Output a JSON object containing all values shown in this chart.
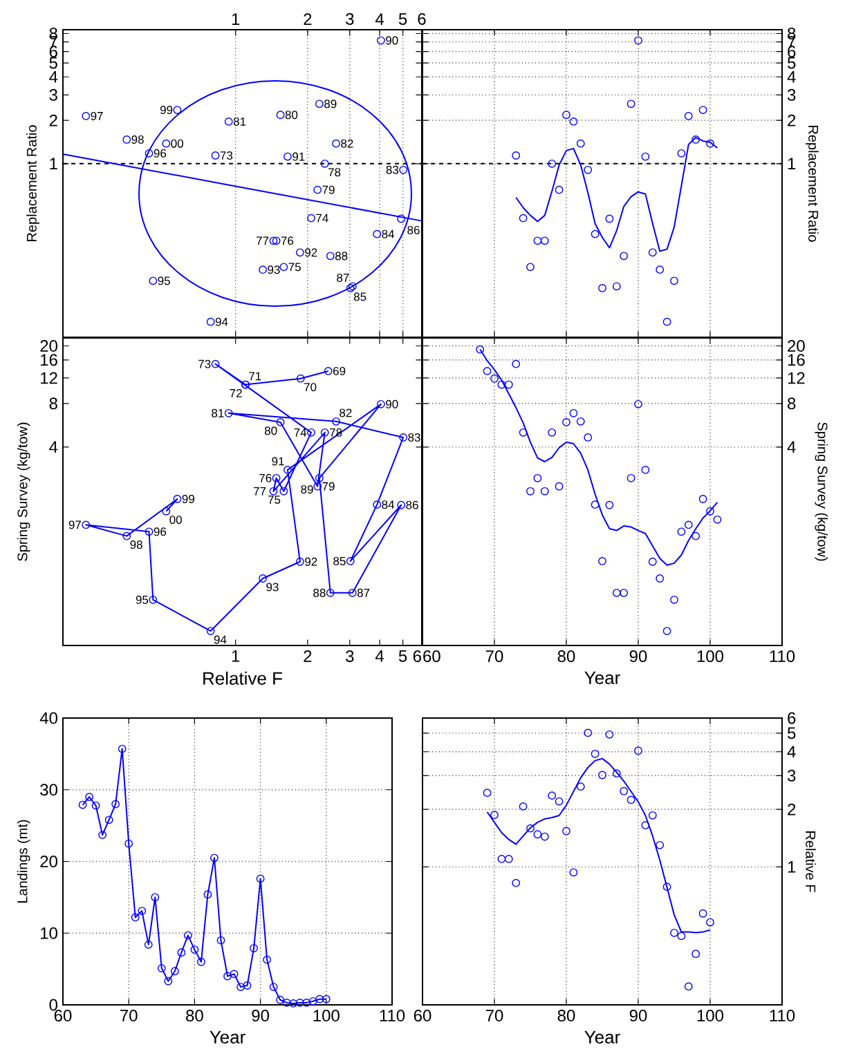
{
  "chart_data": [
    {
      "type": "scatter",
      "ylabel": "Replacement Ratio",
      "log": "xy",
      "xlim": [
        0.19,
        6
      ],
      "ylim": [
        0.0625,
        8.5
      ],
      "xticks": [
        1,
        2,
        3,
        4,
        5,
        6
      ],
      "yticks": [
        1,
        2,
        3,
        4,
        5,
        6,
        7,
        8
      ],
      "grid": "x",
      "ref_lines": [
        {
          "axis": "y",
          "value": 1,
          "line_style": "dashed"
        }
      ],
      "series": [
        {
          "color": "#0000ff",
          "marker": "circle",
          "x": [
            0.824,
            2.07,
            1.59,
            1.48,
            1.44,
            2.36,
            2.2,
            1.54,
            0.936,
            2.63,
            5.02,
            3.9,
            3.02,
            4.92,
            3.08,
            2.49,
            2.24,
            4.05,
            1.65,
            1.86,
            1.3,
            0.787,
            0.452,
            0.435,
            0.237,
            0.351,
            0.571,
            0.513
          ],
          "values": [
            1.14,
            0.419,
            0.192,
            0.292,
            0.292,
            1.0,
            0.659,
            2.18,
            1.96,
            1.38,
            0.906,
            0.325,
            0.137,
            0.415,
            0.141,
            0.229,
            2.6,
            7.16,
            1.12,
            0.242,
            0.184,
            0.08,
            0.154,
            1.18,
            2.14,
            1.47,
            2.36,
            1.38
          ]
        },
        {
          "type": "line",
          "color": "#0000ff",
          "x": [
            0.19,
            1,
            6
          ],
          "values": [
            1.166,
            0.698,
            0.401
          ]
        }
      ],
      "annotations": [
        {
          "text": "73",
          "x": 0.824,
          "y": 1.14
        },
        {
          "text": "74",
          "x": 2.07,
          "y": 0.419
        },
        {
          "text": "75",
          "x": 1.59,
          "y": 0.192
        },
        {
          "text": "76",
          "x": 1.48,
          "y": 0.292
        },
        {
          "text": "77",
          "x": 1.44,
          "y": 0.292
        },
        {
          "text": "78",
          "x": 2.36,
          "y": 1.0
        },
        {
          "text": "79",
          "x": 2.2,
          "y": 0.659
        },
        {
          "text": "80",
          "x": 1.54,
          "y": 2.18
        },
        {
          "text": "81",
          "x": 0.936,
          "y": 1.96
        },
        {
          "text": "82",
          "x": 2.63,
          "y": 1.38
        },
        {
          "text": "83",
          "x": 5.02,
          "y": 0.906
        },
        {
          "text": "84",
          "x": 3.9,
          "y": 0.325
        },
        {
          "text": "85",
          "x": 3.02,
          "y": 0.137
        },
        {
          "text": "86",
          "x": 4.92,
          "y": 0.415
        },
        {
          "text": "87",
          "x": 3.08,
          "y": 0.141
        },
        {
          "text": "88",
          "x": 2.49,
          "y": 0.229
        },
        {
          "text": "89",
          "x": 2.24,
          "y": 2.6
        },
        {
          "text": "90",
          "x": 4.05,
          "y": 7.16
        },
        {
          "text": "91",
          "x": 1.65,
          "y": 1.12
        },
        {
          "text": "92",
          "x": 1.86,
          "y": 0.242
        },
        {
          "text": "93",
          "x": 1.3,
          "y": 0.184
        },
        {
          "text": "94",
          "x": 0.787,
          "y": 0.08
        },
        {
          "text": "95",
          "x": 0.452,
          "y": 0.154
        },
        {
          "text": "96",
          "x": 0.435,
          "y": 1.18
        },
        {
          "text": "97",
          "x": 0.237,
          "y": 2.14
        },
        {
          "text": "98",
          "x": 0.351,
          "y": 1.47
        },
        {
          "text": "99",
          "x": 0.571,
          "y": 2.36
        },
        {
          "text": "00",
          "x": 0.513,
          "y": 1.38
        }
      ]
    },
    {
      "type": "scatter",
      "ylabel": "Replacement Ratio",
      "log": "y",
      "xlim": [
        60,
        110
      ],
      "ylim": [
        0.0625,
        8.5
      ],
      "xticks": [
        60,
        70,
        80,
        90,
        100,
        110
      ],
      "yticks": [
        1,
        2,
        3,
        4,
        5,
        6,
        7,
        8
      ],
      "grid": true,
      "tick_labels": "y",
      "ref_lines": [
        {
          "axis": "y",
          "value": 1,
          "line_style": "dashed"
        }
      ],
      "series": [
        {
          "color": "#0000ff",
          "marker": "circle",
          "x": [
            73,
            74,
            75,
            76,
            77,
            78,
            79,
            80,
            81,
            82,
            83,
            84,
            85,
            86,
            87,
            88,
            89,
            90,
            91,
            92,
            93,
            94,
            95,
            96,
            97,
            98,
            99,
            100
          ],
          "values": [
            1.14,
            0.419,
            0.192,
            0.292,
            0.292,
            1.0,
            0.659,
            2.18,
            1.96,
            1.38,
            0.906,
            0.325,
            0.137,
            0.415,
            0.141,
            0.229,
            2.6,
            7.16,
            1.12,
            0.242,
            0.184,
            0.08,
            0.154,
            1.18,
            2.14,
            1.47,
            2.36,
            1.38
          ]
        },
        {
          "type": "line",
          "color": "#0000ff",
          "x": [
            73,
            74,
            75,
            76,
            77,
            78,
            79,
            80,
            81,
            82,
            83,
            84,
            85,
            86,
            87,
            88,
            89,
            90,
            91,
            92,
            93,
            94,
            95,
            96,
            97,
            98,
            99,
            100,
            101
          ],
          "values": [
            0.583,
            0.495,
            0.438,
            0.397,
            0.438,
            0.644,
            0.978,
            1.233,
            1.274,
            0.978,
            0.63,
            0.384,
            0.308,
            0.261,
            0.344,
            0.506,
            0.59,
            0.637,
            0.616,
            0.384,
            0.247,
            0.255,
            0.363,
            0.703,
            1.361,
            1.518,
            1.438,
            1.406,
            1.288
          ]
        }
      ]
    },
    {
      "type": "line",
      "xlabel": "Relative F",
      "ylabel": "Spring Survey (kg/tow)",
      "log": "xy",
      "xlim": [
        0.19,
        6
      ],
      "ylim": [
        0.17,
        22.7
      ],
      "xticks": [
        1,
        2,
        3,
        4,
        5,
        6
      ],
      "yticks": [
        4,
        8,
        12,
        16,
        20
      ],
      "series": [
        {
          "color": "#0000ff",
          "marker": "circle",
          "x": [
            2.44,
            1.87,
            1.1,
            1.1,
            0.824,
            2.07,
            1.59,
            1.48,
            1.44,
            2.36,
            2.2,
            1.54,
            0.936,
            2.63,
            5.02,
            3.9,
            3.02,
            4.92,
            3.08,
            2.49,
            2.24,
            4.05,
            1.65,
            1.86,
            1.3,
            0.787,
            0.452,
            0.435,
            0.237,
            0.351,
            0.571,
            0.513
          ],
          "values": [
            13.4,
            11.9,
            10.8,
            10.8,
            15.0,
            5.04,
            1.98,
            2.44,
            1.98,
            5.04,
            2.14,
            5.94,
            6.86,
            6.01,
            4.66,
            1.6,
            0.651,
            1.59,
            0.393,
            0.393,
            2.44,
            7.91,
            2.78,
            0.645,
            0.494,
            0.214,
            0.352,
            1.04,
            1.16,
            0.97,
            1.75,
            1.44
          ]
        }
      ],
      "annotations": [
        {
          "text": "69",
          "x": 2.44,
          "y": 13.4
        },
        {
          "text": "70",
          "x": 1.87,
          "y": 11.9
        },
        {
          "text": "71",
          "x": 1.1,
          "y": 10.8
        },
        {
          "text": "72",
          "x": 1.1,
          "y": 10.8
        },
        {
          "text": "73",
          "x": 0.824,
          "y": 15.0
        },
        {
          "text": "74",
          "x": 2.07,
          "y": 5.04
        },
        {
          "text": "75",
          "x": 1.59,
          "y": 1.98
        },
        {
          "text": "76",
          "x": 1.48,
          "y": 2.44
        },
        {
          "text": "77",
          "x": 1.44,
          "y": 1.98
        },
        {
          "text": "78",
          "x": 2.36,
          "y": 5.04
        },
        {
          "text": "79",
          "x": 2.2,
          "y": 2.14
        },
        {
          "text": "80",
          "x": 1.54,
          "y": 5.94
        },
        {
          "text": "81",
          "x": 0.936,
          "y": 6.86
        },
        {
          "text": "82",
          "x": 2.63,
          "y": 6.01
        },
        {
          "text": "83",
          "x": 5.02,
          "y": 4.66
        },
        {
          "text": "84",
          "x": 3.9,
          "y": 1.6
        },
        {
          "text": "85",
          "x": 3.02,
          "y": 0.651
        },
        {
          "text": "86",
          "x": 4.92,
          "y": 1.59
        },
        {
          "text": "87",
          "x": 3.08,
          "y": 0.393
        },
        {
          "text": "88",
          "x": 2.49,
          "y": 0.393
        },
        {
          "text": "89",
          "x": 2.24,
          "y": 2.44
        },
        {
          "text": "90",
          "x": 4.05,
          "y": 7.91
        },
        {
          "text": "91",
          "x": 1.65,
          "y": 2.78
        },
        {
          "text": "92",
          "x": 1.86,
          "y": 0.645
        },
        {
          "text": "93",
          "x": 1.3,
          "y": 0.494
        },
        {
          "text": "94",
          "x": 0.787,
          "y": 0.214
        },
        {
          "text": "95",
          "x": 0.452,
          "y": 0.352
        },
        {
          "text": "96",
          "x": 0.435,
          "y": 1.04
        },
        {
          "text": "97",
          "x": 0.237,
          "y": 1.16
        },
        {
          "text": "98",
          "x": 0.351,
          "y": 0.97
        },
        {
          "text": "99",
          "x": 0.571,
          "y": 1.75
        },
        {
          "text": "00",
          "x": 0.513,
          "y": 1.44
        }
      ]
    },
    {
      "type": "scatter",
      "xlabel": "Year",
      "ylabel": "Spring Survey (kg/tow)",
      "log": "y",
      "xlim": [
        60,
        110
      ],
      "ylim": [
        0.17,
        22.7
      ],
      "xticks": [
        60,
        70,
        80,
        90,
        100,
        110
      ],
      "yticks": [
        4,
        8,
        12,
        16,
        20
      ],
      "grid": true,
      "series": [
        {
          "color": "#0000ff",
          "marker": "circle",
          "x": [
            68,
            69,
            70,
            71,
            72,
            73,
            74,
            75,
            76,
            77,
            78,
            79,
            80,
            81,
            82,
            83,
            84,
            85,
            86,
            87,
            88,
            89,
            90,
            91,
            92,
            93,
            94,
            95,
            96,
            97,
            98,
            99,
            100,
            101
          ],
          "values": [
            18.9,
            13.4,
            11.9,
            10.8,
            10.8,
            15.0,
            5.04,
            1.98,
            2.44,
            1.98,
            5.04,
            2.14,
            5.94,
            6.86,
            6.01,
            4.66,
            1.6,
            0.651,
            1.59,
            0.393,
            0.393,
            2.44,
            7.91,
            2.78,
            0.645,
            0.494,
            0.214,
            0.352,
            1.04,
            1.16,
            0.97,
            1.75,
            1.44,
            1.26
          ]
        },
        {
          "type": "line",
          "color": "#0000ff",
          "x": [
            68,
            69,
            70,
            71,
            72,
            73,
            74,
            75,
            76,
            77,
            78,
            79,
            80,
            81,
            82,
            83,
            84,
            85,
            86,
            87,
            88,
            89,
            90,
            91,
            92,
            93,
            94,
            95,
            96,
            97,
            98,
            99,
            100,
            101
          ],
          "values": [
            18.9,
            15.8,
            13.7,
            11.6,
            9.33,
            7.49,
            5.88,
            4.32,
            3.36,
            3.17,
            3.39,
            3.96,
            4.32,
            4.22,
            3.62,
            2.78,
            1.89,
            1.36,
            1.09,
            1.06,
            1.14,
            1.12,
            1.06,
            1.01,
            0.829,
            0.68,
            0.61,
            0.63,
            0.718,
            0.904,
            1.09,
            1.29,
            1.45,
            1.66
          ]
        }
      ]
    },
    {
      "type": "line",
      "xlabel": "Year",
      "ylabel": "Landings (mt)",
      "xlim": [
        60,
        110
      ],
      "ylim": [
        0,
        40
      ],
      "xticks": [
        60,
        70,
        80,
        90,
        100,
        110
      ],
      "yticks": [
        0,
        10,
        20,
        30,
        40
      ],
      "grid": true,
      "series": [
        {
          "color": "#0000ff",
          "marker": "circle",
          "x": [
            63,
            64,
            65,
            66,
            67,
            68,
            69,
            70,
            71,
            72,
            73,
            74,
            75,
            76,
            77,
            78,
            79,
            80,
            81,
            82,
            83,
            84,
            85,
            86,
            87,
            88,
            89,
            90,
            91,
            92,
            93,
            94,
            95,
            96,
            97,
            98,
            99,
            100
          ],
          "values": [
            27.9,
            29.0,
            27.8,
            23.7,
            25.8,
            28.0,
            35.7,
            22.5,
            12.2,
            13.1,
            8.4,
            15.0,
            5.1,
            3.3,
            4.7,
            7.3,
            9.7,
            7.7,
            6.0,
            15.4,
            20.5,
            9.0,
            4.0,
            4.3,
            2.5,
            2.7,
            7.9,
            17.6,
            6.3,
            2.5,
            0.7,
            0.3,
            0.2,
            0.3,
            0.3,
            0.5,
            0.8,
            0.8
          ]
        }
      ]
    },
    {
      "type": "scatter",
      "xlabel": "Year",
      "ylabel": "Relative F",
      "log": "y",
      "xlim": [
        60,
        110
      ],
      "ylim": [
        0.19,
        6
      ],
      "xticks": [
        60,
        70,
        80,
        90,
        100,
        110
      ],
      "yticks": [
        1,
        2,
        3,
        4,
        5,
        6
      ],
      "grid": true,
      "series": [
        {
          "color": "#0000ff",
          "marker": "circle",
          "x": [
            69,
            70,
            71,
            72,
            73,
            74,
            75,
            76,
            77,
            78,
            79,
            80,
            81,
            82,
            83,
            84,
            85,
            86,
            87,
            88,
            89,
            90,
            91,
            92,
            93,
            94,
            95,
            96,
            97,
            98,
            99,
            100
          ],
          "values": [
            2.44,
            1.87,
            1.1,
            1.1,
            0.824,
            2.07,
            1.59,
            1.48,
            1.44,
            2.36,
            2.2,
            1.54,
            0.936,
            2.63,
            5.02,
            3.9,
            3.02,
            4.92,
            3.08,
            2.49,
            2.24,
            4.05,
            1.65,
            1.86,
            1.3,
            0.787,
            0.452,
            0.435,
            0.237,
            0.351,
            0.571,
            0.513
          ]
        },
        {
          "type": "line",
          "color": "#0000ff",
          "x": [
            69,
            70,
            71,
            72,
            73,
            74,
            75,
            76,
            77,
            78,
            79,
            80,
            81,
            82,
            83,
            84,
            85,
            86,
            87,
            88,
            89,
            90,
            91,
            92,
            93,
            94,
            95,
            96,
            97,
            98,
            99,
            100
          ],
          "values": [
            1.935,
            1.71,
            1.511,
            1.391,
            1.313,
            1.45,
            1.601,
            1.71,
            1.782,
            1.811,
            1.857,
            2.101,
            2.479,
            2.924,
            3.308,
            3.593,
            3.683,
            3.448,
            3.123,
            2.805,
            2.479,
            2.19,
            1.857,
            1.45,
            1.086,
            0.781,
            0.561,
            0.457,
            0.457,
            0.453,
            0.457,
            0.468
          ]
        }
      ]
    }
  ]
}
